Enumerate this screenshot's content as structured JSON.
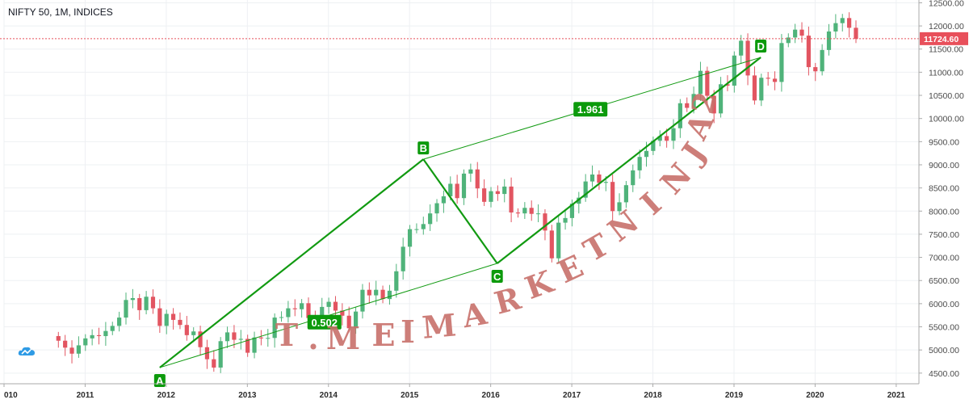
{
  "header": {
    "title": "NIFTY 50, 1M, INDICES"
  },
  "colors": {
    "up": "#4fb37a",
    "down": "#e25561",
    "pattern": "#119a11",
    "label_bg": "#0c9a0c",
    "price_line": "#e8505b",
    "watermark": "#c8706a"
  },
  "icons": {
    "logo": "tradingview-cloud-icon"
  },
  "watermark": {
    "letters": [
      "T",
      ".",
      "M",
      "E",
      "I",
      "M",
      "A",
      "R",
      "K",
      "E",
      "T",
      "N",
      "I",
      "N",
      "J",
      "A",
      "2"
    ]
  },
  "chart_data": {
    "type": "candlestick",
    "title": "NIFTY 50, 1M, INDICES",
    "y_axis": {
      "ticks": [
        "4500.00",
        "5000.00",
        "5500.00",
        "6000.00",
        "6500.00",
        "7000.00",
        "7500.00",
        "8000.00",
        "8500.00",
        "9000.00",
        "9500.00",
        "10000.00",
        "10500.00",
        "11000.00",
        "11500.00",
        "12000.00",
        "12500.00"
      ],
      "range": [
        4270,
        12560
      ]
    },
    "x_axis": {
      "ticks": [
        "010",
        "2011",
        "2012",
        "2013",
        "2014",
        "2015",
        "2016",
        "2017",
        "2018",
        "2019",
        "2020",
        "2021"
      ],
      "range": [
        2010.0,
        2021.28
      ]
    },
    "last_price": {
      "label": "11724.60",
      "value": 11724.6
    },
    "pattern_points": [
      {
        "label": "A",
        "x": 2011.92,
        "y": 4620
      },
      {
        "label": "B",
        "x": 2015.17,
        "y": 9120
      },
      {
        "label": "C",
        "x": 2016.08,
        "y": 6870
      },
      {
        "label": "D",
        "x": 2019.33,
        "y": 11320
      }
    ],
    "ratios": [
      {
        "label": "0.502",
        "x": 2013.95,
        "y": 5600
      },
      {
        "label": "1.961",
        "x": 2017.23,
        "y": 10200
      }
    ],
    "close_values": [
      5200,
      5050,
      4920,
      5100,
      5250,
      5320,
      5300,
      5410,
      5520,
      5700,
      6080,
      6120,
      5860,
      6150,
      5900,
      5520,
      5780,
      5650,
      5540,
      5320,
      5400,
      5060,
      4800,
      4620,
      5190,
      5380,
      5220,
      5240,
      4940,
      5270,
      5250,
      5260,
      5700,
      5710,
      5900,
      5880,
      6010,
      5690,
      5680,
      5930,
      6040,
      5850,
      5740,
      5470,
      5830,
      6300,
      6180,
      6300,
      6100,
      6280,
      6700,
      7230,
      7610,
      7610,
      7720,
      7950,
      8170,
      8320,
      8590,
      8280,
      8810,
      8900,
      8490,
      8200,
      8430,
      8370,
      8530,
      7970,
      7950,
      8070,
      7940,
      7950,
      7580,
      6980,
      7750,
      7850,
      8160,
      8290,
      8640,
      8790,
      8610,
      8630,
      8000,
      8190,
      8560,
      8880,
      9170,
      9300,
      9520,
      9620,
      9520,
      9790,
      10330,
      10230,
      10530,
      11030,
      10490,
      10110,
      10740,
      10710,
      11360,
      11680,
      10930,
      10390,
      10880,
      10860,
      10790,
      11630,
      11750,
      11920,
      11790,
      11110,
      11020,
      11480,
      11880,
      12060,
      12170,
      11960,
      11720
    ],
    "grid": true
  }
}
